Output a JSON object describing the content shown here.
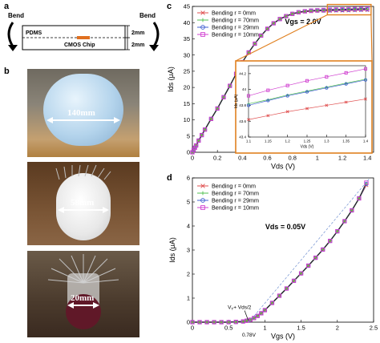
{
  "panel_labels": {
    "a": "a",
    "b": "b",
    "c": "c",
    "d": "d"
  },
  "schematic": {
    "bend_left": "Bend",
    "bend_right": "Bend",
    "pdms": "PDMS",
    "chip": "CMOS Chip",
    "dim_top": "2mm",
    "dim_bottom": "2mm"
  },
  "photos": [
    {
      "label": "140mm"
    },
    {
      "label": "58mm"
    },
    {
      "label": "20mm"
    }
  ],
  "legend_entries": [
    "Bending r = 0mm",
    "Bending r = 70mm",
    "Bending r = 29mm",
    "Bending r = 10mm"
  ],
  "colors": {
    "r0": "#e05050",
    "r70": "#50c050",
    "r29": "#4060d0",
    "r10": "#d040d0",
    "orange": "#e08020",
    "main": "#9040b0"
  },
  "chart_data": [
    {
      "type": "line",
      "panel": "c",
      "annotation": "Vgs = 2.0V",
      "xlabel": "Vds (V)",
      "ylabel": "Ids (μA)",
      "xlim": [
        0,
        1.45
      ],
      "ylim": [
        0,
        45
      ],
      "xticks": [
        "0",
        "0.2",
        "0.4",
        "0.6",
        "0.8",
        "1",
        "1.2",
        "1.4"
      ],
      "yticks": [
        "0",
        "5",
        "10",
        "15",
        "20",
        "25",
        "30",
        "35",
        "40",
        "45"
      ],
      "x": [
        0,
        0.01,
        0.02,
        0.03,
        0.05,
        0.075,
        0.1,
        0.15,
        0.2,
        0.25,
        0.3,
        0.35,
        0.4,
        0.45,
        0.5,
        0.55,
        0.6,
        0.65,
        0.7,
        0.75,
        0.8,
        0.85,
        0.9,
        0.95,
        1.0,
        1.05,
        1.1,
        1.15,
        1.2,
        1.25,
        1.3,
        1.35,
        1.4
      ],
      "series": [
        {
          "name": "Bending r = 0mm",
          "values": [
            0,
            0.7,
            1.4,
            2.1,
            3.6,
            5.3,
            7.0,
            10.3,
            13.5,
            17.0,
            20.5,
            24.2,
            27.8,
            30.8,
            33.5,
            36.0,
            38.1,
            39.8,
            41.1,
            42.0,
            42.7,
            43.1,
            43.4,
            43.5,
            43.6,
            43.6,
            43.65,
            43.7,
            43.7,
            43.75,
            43.8,
            43.85,
            43.85
          ]
        },
        {
          "name": "Bending r = 70mm",
          "values": [
            0,
            0.7,
            1.4,
            2.1,
            3.6,
            5.3,
            7.0,
            10.3,
            13.5,
            17.0,
            20.5,
            24.2,
            27.8,
            30.8,
            33.5,
            36.0,
            38.1,
            39.8,
            41.1,
            42.0,
            42.7,
            43.2,
            43.5,
            43.6,
            43.7,
            43.75,
            43.8,
            43.85,
            43.9,
            43.95,
            44.0,
            44.05,
            44.1
          ]
        },
        {
          "name": "Bending r = 29mm",
          "values": [
            0,
            0.7,
            1.4,
            2.1,
            3.6,
            5.3,
            7.0,
            10.3,
            13.5,
            17.0,
            20.5,
            24.2,
            27.8,
            30.8,
            33.5,
            36.0,
            38.1,
            39.8,
            41.1,
            42.0,
            42.7,
            43.2,
            43.5,
            43.6,
            43.7,
            43.75,
            43.8,
            43.85,
            43.9,
            43.95,
            44.0,
            44.05,
            44.1
          ]
        },
        {
          "name": "Bending r = 10mm",
          "values": [
            0,
            0.7,
            1.4,
            2.1,
            3.6,
            5.3,
            7.0,
            10.3,
            13.5,
            17.0,
            20.5,
            24.2,
            27.8,
            30.8,
            33.5,
            36.0,
            38.1,
            39.8,
            41.1,
            42.0,
            42.7,
            43.2,
            43.5,
            43.7,
            43.8,
            43.9,
            44.0,
            44.05,
            44.1,
            44.15,
            44.2,
            44.25,
            44.3
          ]
        }
      ]
    },
    {
      "type": "line",
      "panel": "c-inset",
      "xlabel": "Vds (V)",
      "ylabel": "Ids (μA)",
      "xlim": [
        1.1,
        1.4
      ],
      "ylim": [
        43.4,
        44.3
      ],
      "xticks": [
        "1.1",
        "1.15",
        "1.2",
        "1.25",
        "1.3",
        "1.35",
        "1.4"
      ],
      "yticks": [
        "43.4",
        "43.6",
        "43.8",
        "44",
        "44.2"
      ],
      "x": [
        1.1,
        1.15,
        1.2,
        1.25,
        1.3,
        1.35,
        1.4
      ],
      "series": [
        {
          "name": "Bending r = 0mm",
          "values": [
            43.62,
            43.67,
            43.72,
            43.76,
            43.8,
            43.84,
            43.88
          ]
        },
        {
          "name": "Bending r = 70mm",
          "values": [
            43.82,
            43.87,
            43.93,
            43.98,
            44.03,
            44.08,
            44.13
          ]
        },
        {
          "name": "Bending r = 29mm",
          "values": [
            43.8,
            43.86,
            43.92,
            43.97,
            44.02,
            44.07,
            44.12
          ]
        },
        {
          "name": "Bending r = 10mm",
          "values": [
            43.92,
            43.99,
            44.05,
            44.11,
            44.16,
            44.21,
            44.26
          ]
        }
      ]
    },
    {
      "type": "line",
      "panel": "d",
      "annotation": "Vds = 0.05V",
      "threshold_label": "V",
      "threshold_sub": "T",
      "threshold_rest": "+ Vds/2",
      "threshold_value": "0.78V",
      "xlabel": "Vgs (V)",
      "ylabel": "Ids (μA)",
      "xlim": [
        0,
        2.5
      ],
      "ylim": [
        0,
        6
      ],
      "xticks": [
        "0",
        "0.5",
        "1",
        "1.5",
        "2",
        "2.5"
      ],
      "yticks": [
        "0",
        "1",
        "2",
        "3",
        "4",
        "5",
        "6"
      ],
      "x": [
        0,
        0.1,
        0.2,
        0.3,
        0.4,
        0.5,
        0.6,
        0.7,
        0.75,
        0.8,
        0.85,
        0.9,
        0.95,
        1.0,
        1.1,
        1.2,
        1.3,
        1.4,
        1.5,
        1.6,
        1.7,
        1.8,
        1.9,
        2.0,
        2.1,
        2.2,
        2.3,
        2.4
      ],
      "series": [
        {
          "name": "Bending r = 0mm",
          "values": [
            0,
            0,
            0,
            0,
            0,
            0,
            0.01,
            0.03,
            0.06,
            0.1,
            0.17,
            0.26,
            0.37,
            0.5,
            0.8,
            1.1,
            1.4,
            1.72,
            2.03,
            2.35,
            2.68,
            3.02,
            3.38,
            3.78,
            4.2,
            4.65,
            5.15,
            5.7
          ]
        },
        {
          "name": "Bending r = 70mm",
          "values": [
            0,
            0,
            0,
            0,
            0,
            0,
            0.01,
            0.03,
            0.06,
            0.1,
            0.17,
            0.26,
            0.37,
            0.5,
            0.8,
            1.1,
            1.4,
            1.72,
            2.03,
            2.35,
            2.68,
            3.02,
            3.38,
            3.78,
            4.2,
            4.65,
            5.15,
            5.75
          ]
        },
        {
          "name": "Bending r = 29mm",
          "values": [
            0,
            0,
            0,
            0,
            0,
            0,
            0.01,
            0.03,
            0.06,
            0.1,
            0.17,
            0.26,
            0.37,
            0.5,
            0.8,
            1.1,
            1.4,
            1.72,
            2.03,
            2.35,
            2.68,
            3.02,
            3.38,
            3.78,
            4.2,
            4.65,
            5.15,
            5.75
          ]
        },
        {
          "name": "Bending r = 10mm",
          "values": [
            0,
            0,
            0,
            0,
            0,
            0,
            0.01,
            0.03,
            0.06,
            0.1,
            0.17,
            0.26,
            0.37,
            0.5,
            0.8,
            1.1,
            1.4,
            1.72,
            2.03,
            2.35,
            2.68,
            3.02,
            3.38,
            3.78,
            4.2,
            4.65,
            5.15,
            5.8
          ]
        }
      ]
    }
  ]
}
